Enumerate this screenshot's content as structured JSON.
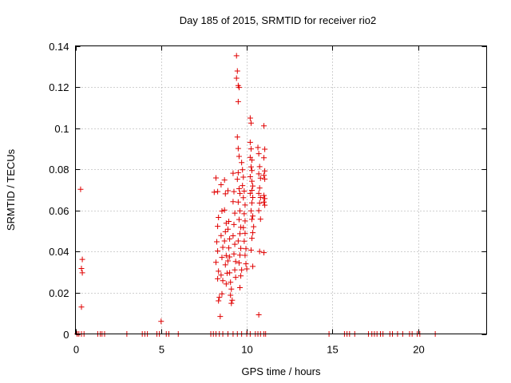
{
  "chart_data": {
    "type": "scatter",
    "title": "Day 185 of 2015, SRMTID for receiver rio2",
    "xlabel": "GPS time / hours",
    "ylabel": "SRMTID / TECUs",
    "xlim": [
      0,
      24
    ],
    "ylim": [
      0,
      0.14
    ],
    "xticks": [
      0,
      5,
      10,
      15,
      20
    ],
    "yticks": [
      0,
      0.02,
      0.04,
      0.06,
      0.08,
      0.1,
      0.12,
      0.14
    ],
    "xtick_labels": [
      "0",
      "5",
      "10",
      "15",
      "20"
    ],
    "ytick_labels": [
      "0",
      "0.02",
      "0.04",
      "0.06",
      "0.08",
      "0.1",
      "0.12",
      "0.14"
    ],
    "grid": true,
    "marker": "+",
    "color": "#e00000",
    "series": [
      {
        "name": "rio2",
        "points": [
          [
            0.3,
            0.0703
          ],
          [
            0.4,
            0.0362
          ],
          [
            0.35,
            0.0318
          ],
          [
            0.4,
            0.0297
          ],
          [
            0.35,
            0.0131
          ],
          [
            5.0,
            0.0061
          ],
          [
            8.1,
            0.0689
          ],
          [
            8.2,
            0.0758
          ],
          [
            8.3,
            0.0692
          ],
          [
            8.35,
            0.0566
          ],
          [
            8.3,
            0.0523
          ],
          [
            8.25,
            0.0448
          ],
          [
            8.3,
            0.0403
          ],
          [
            8.2,
            0.0348
          ],
          [
            8.35,
            0.0305
          ],
          [
            8.3,
            0.0268
          ],
          [
            8.4,
            0.0178
          ],
          [
            8.35,
            0.0161
          ],
          [
            8.45,
            0.0085
          ],
          [
            8.5,
            0.0725
          ],
          [
            8.55,
            0.0597
          ],
          [
            8.5,
            0.0478
          ],
          [
            8.6,
            0.0421
          ],
          [
            8.55,
            0.0372
          ],
          [
            8.5,
            0.0286
          ],
          [
            8.6,
            0.0259
          ],
          [
            8.55,
            0.0195
          ],
          [
            8.7,
            0.0748
          ],
          [
            8.75,
            0.0681
          ],
          [
            8.7,
            0.0602
          ],
          [
            8.8,
            0.0538
          ],
          [
            8.75,
            0.0497
          ],
          [
            8.7,
            0.0452
          ],
          [
            8.8,
            0.0381
          ],
          [
            8.75,
            0.0336
          ],
          [
            8.85,
            0.0295
          ],
          [
            8.8,
            0.0243
          ],
          [
            8.9,
            0.0696
          ],
          [
            8.95,
            0.0547
          ],
          [
            8.9,
            0.0509
          ],
          [
            9.0,
            0.0462
          ],
          [
            8.95,
            0.0418
          ],
          [
            9.0,
            0.0374
          ],
          [
            8.9,
            0.0355
          ],
          [
            9.0,
            0.0297
          ],
          [
            9.05,
            0.0251
          ],
          [
            9.1,
            0.0218
          ],
          [
            9.05,
            0.0188
          ],
          [
            9.15,
            0.0164
          ],
          [
            9.1,
            0.0149
          ],
          [
            9.2,
            0.0781
          ],
          [
            9.25,
            0.0692
          ],
          [
            9.2,
            0.0643
          ],
          [
            9.3,
            0.0587
          ],
          [
            9.25,
            0.0532
          ],
          [
            9.2,
            0.0477
          ],
          [
            9.3,
            0.0436
          ],
          [
            9.25,
            0.0389
          ],
          [
            9.35,
            0.0352
          ],
          [
            9.3,
            0.0311
          ],
          [
            9.35,
            0.0275
          ],
          [
            9.4,
            0.1352
          ],
          [
            9.45,
            0.1278
          ],
          [
            9.4,
            0.1243
          ],
          [
            9.5,
            0.1207
          ],
          [
            9.55,
            0.1198
          ],
          [
            9.5,
            0.1129
          ],
          [
            9.45,
            0.0957
          ],
          [
            9.5,
            0.0901
          ],
          [
            9.55,
            0.0863
          ],
          [
            9.5,
            0.0784
          ],
          [
            9.45,
            0.0752
          ],
          [
            9.55,
            0.0706
          ],
          [
            9.6,
            0.0683
          ],
          [
            9.5,
            0.0641
          ],
          [
            9.6,
            0.0598
          ],
          [
            9.55,
            0.0556
          ],
          [
            9.65,
            0.0518
          ],
          [
            9.6,
            0.0487
          ],
          [
            9.5,
            0.0452
          ],
          [
            9.65,
            0.0416
          ],
          [
            9.6,
            0.0383
          ],
          [
            9.55,
            0.0345
          ],
          [
            9.7,
            0.0311
          ],
          [
            9.65,
            0.0282
          ],
          [
            9.6,
            0.0225
          ],
          [
            9.7,
            0.0833
          ],
          [
            9.75,
            0.0798
          ],
          [
            9.8,
            0.0762
          ],
          [
            9.75,
            0.0721
          ],
          [
            9.85,
            0.0694
          ],
          [
            9.8,
            0.0662
          ],
          [
            9.9,
            0.0627
          ],
          [
            9.85,
            0.0584
          ],
          [
            9.9,
            0.0549
          ],
          [
            9.8,
            0.0517
          ],
          [
            9.9,
            0.0489
          ],
          [
            9.85,
            0.0451
          ],
          [
            9.95,
            0.0414
          ],
          [
            9.9,
            0.0382
          ],
          [
            9.95,
            0.0341
          ],
          [
            10.0,
            0.0316
          ],
          [
            10.2,
            0.1049
          ],
          [
            10.25,
            0.1025
          ],
          [
            10.2,
            0.0931
          ],
          [
            10.25,
            0.0899
          ],
          [
            10.2,
            0.0858
          ],
          [
            10.3,
            0.0845
          ],
          [
            10.25,
            0.0812
          ],
          [
            10.3,
            0.0794
          ],
          [
            10.2,
            0.0764
          ],
          [
            10.3,
            0.0742
          ],
          [
            10.35,
            0.0719
          ],
          [
            10.3,
            0.0698
          ],
          [
            10.2,
            0.0683
          ],
          [
            10.35,
            0.0663
          ],
          [
            10.3,
            0.0637
          ],
          [
            10.25,
            0.0598
          ],
          [
            10.35,
            0.0573
          ],
          [
            10.3,
            0.0557
          ],
          [
            10.4,
            0.0521
          ],
          [
            10.35,
            0.0492
          ],
          [
            10.3,
            0.0465
          ],
          [
            10.25,
            0.0407
          ],
          [
            10.35,
            0.0328
          ],
          [
            10.65,
            0.0906
          ],
          [
            10.7,
            0.0876
          ],
          [
            10.75,
            0.0813
          ],
          [
            10.7,
            0.0778
          ],
          [
            10.8,
            0.0757
          ],
          [
            10.75,
            0.0709
          ],
          [
            10.7,
            0.0683
          ],
          [
            10.8,
            0.0663
          ],
          [
            10.75,
            0.0636
          ],
          [
            10.7,
            0.0599
          ],
          [
            10.8,
            0.0558
          ],
          [
            10.75,
            0.0401
          ],
          [
            10.7,
            0.0093
          ],
          [
            11.0,
            0.1011
          ],
          [
            11.05,
            0.0898
          ],
          [
            11.0,
            0.0856
          ],
          [
            11.05,
            0.0792
          ],
          [
            11.0,
            0.0771
          ],
          [
            11.05,
            0.0753
          ],
          [
            11.0,
            0.0673
          ],
          [
            11.05,
            0.0658
          ],
          [
            11.0,
            0.0641
          ],
          [
            11.05,
            0.0626
          ],
          [
            11.0,
            0.0395
          ],
          [
            0.1,
            0
          ],
          [
            0.2,
            0
          ],
          [
            0.35,
            0
          ],
          [
            0.5,
            0
          ],
          [
            1.3,
            0
          ],
          [
            1.45,
            0
          ],
          [
            1.55,
            0
          ],
          [
            1.7,
            0
          ],
          [
            3.0,
            0
          ],
          [
            3.9,
            0
          ],
          [
            4.05,
            0
          ],
          [
            4.2,
            0
          ],
          [
            4.75,
            0
          ],
          [
            4.9,
            0
          ],
          [
            5.3,
            0
          ],
          [
            5.45,
            0
          ],
          [
            6.0,
            0
          ],
          [
            7.9,
            0
          ],
          [
            8.05,
            0
          ],
          [
            8.2,
            0
          ],
          [
            8.4,
            0
          ],
          [
            8.6,
            0
          ],
          [
            8.9,
            0
          ],
          [
            9.2,
            0
          ],
          [
            9.45,
            0
          ],
          [
            9.7,
            0
          ],
          [
            10.0,
            0
          ],
          [
            10.2,
            0
          ],
          [
            10.5,
            0
          ],
          [
            10.65,
            0
          ],
          [
            10.8,
            0
          ],
          [
            11.0,
            0
          ],
          [
            11.1,
            0
          ],
          [
            14.8,
            0
          ],
          [
            15.7,
            0
          ],
          [
            15.85,
            0
          ],
          [
            16.0,
            0
          ],
          [
            16.3,
            0
          ],
          [
            17.1,
            0
          ],
          [
            17.3,
            0
          ],
          [
            17.45,
            0
          ],
          [
            17.6,
            0
          ],
          [
            17.8,
            0
          ],
          [
            17.95,
            0
          ],
          [
            18.35,
            0
          ],
          [
            18.5,
            0
          ],
          [
            18.8,
            0
          ],
          [
            19.1,
            0
          ],
          [
            19.5,
            0
          ],
          [
            19.65,
            0
          ],
          [
            19.95,
            0
          ],
          [
            20.1,
            0
          ],
          [
            21.0,
            0
          ]
        ]
      }
    ]
  }
}
